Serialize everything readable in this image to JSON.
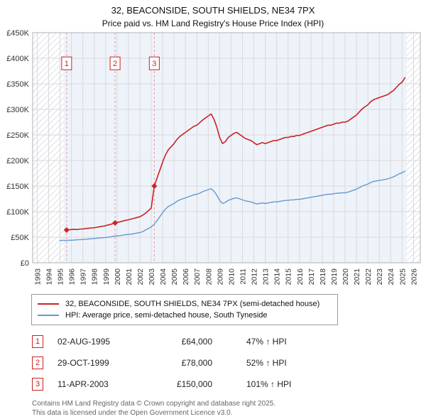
{
  "header": {
    "title": "32, BEACONSIDE, SOUTH SHIELDS, NE34 7PX",
    "subtitle": "Price paid vs. HM Land Registry's House Price Index (HPI)"
  },
  "chart_data": {
    "type": "line",
    "unit": "GBP thousands",
    "xlim": [
      1992.6,
      2026.6
    ],
    "ylim": [
      0,
      450
    ],
    "ytick_step": 50,
    "ytick_labels": [
      "£0",
      "£50K",
      "£100K",
      "£150K",
      "£200K",
      "£250K",
      "£300K",
      "£350K",
      "£400K",
      "£450K"
    ],
    "xticks": [
      1993,
      1994,
      1995,
      1996,
      1997,
      1998,
      1999,
      2000,
      2001,
      2002,
      2003,
      2004,
      2005,
      2006,
      2007,
      2008,
      2009,
      2010,
      2011,
      2012,
      2013,
      2014,
      2015,
      2016,
      2017,
      2018,
      2019,
      2020,
      2021,
      2022,
      2023,
      2024,
      2025,
      2026
    ],
    "grid": true,
    "legend_position": "bottom",
    "hatch_regions": [
      [
        1992.6,
        1995.3
      ],
      [
        2025.4,
        2026.6
      ]
    ],
    "band_region": [
      1995.3,
      2025.4
    ],
    "marker_box_y": 390,
    "colors": {
      "property": "#cc2222",
      "hpi": "#6699cc",
      "sale_line": "#e89999",
      "grid": "#d9d9d9",
      "band": "#eef3fa",
      "hatch": "#c9cfdb",
      "border": "#b0b0b0"
    },
    "series": [
      {
        "name": "32, BEACONSIDE, SOUTH SHIELDS, NE34 7PX (semi-detached house)",
        "color_key": "property",
        "width": 1.6,
        "points": [
          [
            1995.58,
            64
          ],
          [
            1995.75,
            64.5
          ],
          [
            1996.0,
            65
          ],
          [
            1996.25,
            65.5
          ],
          [
            1996.5,
            65
          ],
          [
            1996.75,
            66
          ],
          [
            1997.0,
            66
          ],
          [
            1997.25,
            67
          ],
          [
            1997.5,
            67.5
          ],
          [
            1997.75,
            68
          ],
          [
            1998.0,
            68.5
          ],
          [
            1998.25,
            69.5
          ],
          [
            1998.5,
            70.5
          ],
          [
            1998.75,
            71.5
          ],
          [
            1999.0,
            72.5
          ],
          [
            1999.25,
            74
          ],
          [
            1999.5,
            75.5
          ],
          [
            1999.83,
            78
          ],
          [
            2000.0,
            79
          ],
          [
            2000.25,
            80
          ],
          [
            2000.5,
            81.5
          ],
          [
            2000.75,
            83
          ],
          [
            2001.0,
            84
          ],
          [
            2001.25,
            85.5
          ],
          [
            2001.5,
            87
          ],
          [
            2001.75,
            88.5
          ],
          [
            2002.0,
            90
          ],
          [
            2002.25,
            93
          ],
          [
            2002.5,
            97
          ],
          [
            2002.75,
            102
          ],
          [
            2003.0,
            107
          ],
          [
            2003.27,
            150
          ],
          [
            2003.5,
            165
          ],
          [
            2003.75,
            181
          ],
          [
            2004.0,
            197
          ],
          [
            2004.25,
            211
          ],
          [
            2004.5,
            221
          ],
          [
            2004.75,
            227
          ],
          [
            2005.0,
            233
          ],
          [
            2005.25,
            241
          ],
          [
            2005.5,
            247
          ],
          [
            2005.75,
            251
          ],
          [
            2006.0,
            255
          ],
          [
            2006.25,
            259
          ],
          [
            2006.5,
            263
          ],
          [
            2006.75,
            267
          ],
          [
            2007.0,
            269
          ],
          [
            2007.25,
            274
          ],
          [
            2007.5,
            279
          ],
          [
            2007.75,
            283
          ],
          [
            2008.0,
            287
          ],
          [
            2008.25,
            291
          ],
          [
            2008.5,
            281
          ],
          [
            2008.75,
            265
          ],
          [
            2009.0,
            245
          ],
          [
            2009.25,
            233
          ],
          [
            2009.5,
            237
          ],
          [
            2009.75,
            245
          ],
          [
            2010.0,
            249
          ],
          [
            2010.25,
            253
          ],
          [
            2010.5,
            255
          ],
          [
            2010.75,
            251
          ],
          [
            2011.0,
            247
          ],
          [
            2011.25,
            243
          ],
          [
            2011.5,
            241
          ],
          [
            2011.75,
            239
          ],
          [
            2012.0,
            235
          ],
          [
            2012.25,
            231
          ],
          [
            2012.5,
            233
          ],
          [
            2012.75,
            235
          ],
          [
            2013.0,
            233
          ],
          [
            2013.25,
            235
          ],
          [
            2013.5,
            237
          ],
          [
            2013.75,
            239
          ],
          [
            2014.0,
            239
          ],
          [
            2014.25,
            241
          ],
          [
            2014.5,
            243
          ],
          [
            2014.75,
            245
          ],
          [
            2015.0,
            245
          ],
          [
            2015.25,
            247
          ],
          [
            2015.5,
            247
          ],
          [
            2015.75,
            249
          ],
          [
            2016.0,
            249
          ],
          [
            2016.25,
            251
          ],
          [
            2016.5,
            253
          ],
          [
            2016.75,
            255
          ],
          [
            2017.0,
            257
          ],
          [
            2017.25,
            259
          ],
          [
            2017.5,
            261
          ],
          [
            2017.75,
            263
          ],
          [
            2018.0,
            265
          ],
          [
            2018.25,
            267
          ],
          [
            2018.5,
            269
          ],
          [
            2018.75,
            269
          ],
          [
            2019.0,
            271
          ],
          [
            2019.25,
            273
          ],
          [
            2019.5,
            273
          ],
          [
            2019.75,
            275
          ],
          [
            2020.0,
            275
          ],
          [
            2020.25,
            277
          ],
          [
            2020.5,
            281
          ],
          [
            2020.75,
            285
          ],
          [
            2021.0,
            289
          ],
          [
            2021.25,
            295
          ],
          [
            2021.5,
            301
          ],
          [
            2021.75,
            305
          ],
          [
            2022.0,
            309
          ],
          [
            2022.25,
            315
          ],
          [
            2022.5,
            319
          ],
          [
            2022.75,
            321
          ],
          [
            2023.0,
            323
          ],
          [
            2023.25,
            325
          ],
          [
            2023.5,
            327
          ],
          [
            2023.75,
            329
          ],
          [
            2024.0,
            333
          ],
          [
            2024.25,
            337
          ],
          [
            2024.5,
            343
          ],
          [
            2024.75,
            349
          ],
          [
            2025.0,
            353
          ],
          [
            2025.25,
            362
          ]
        ]
      },
      {
        "name": "HPI: Average price, semi-detached house, South Tyneside",
        "color_key": "hpi",
        "width": 1.4,
        "points": [
          [
            1995.0,
            43
          ],
          [
            1995.25,
            44
          ],
          [
            1995.5,
            43.5
          ],
          [
            1995.75,
            44
          ],
          [
            1996.0,
            44
          ],
          [
            1996.25,
            44.5
          ],
          [
            1996.5,
            45
          ],
          [
            1996.75,
            45
          ],
          [
            1997.0,
            45.5
          ],
          [
            1997.25,
            46
          ],
          [
            1997.5,
            46.5
          ],
          [
            1997.75,
            47
          ],
          [
            1998.0,
            47.5
          ],
          [
            1998.25,
            48
          ],
          [
            1998.5,
            48.5
          ],
          [
            1998.75,
            49
          ],
          [
            1999.0,
            49.5
          ],
          [
            1999.25,
            50
          ],
          [
            1999.5,
            51
          ],
          [
            1999.75,
            52
          ],
          [
            2000.0,
            52.5
          ],
          [
            2000.25,
            53
          ],
          [
            2000.5,
            54
          ],
          [
            2000.75,
            55
          ],
          [
            2001.0,
            55.5
          ],
          [
            2001.25,
            56
          ],
          [
            2001.5,
            57
          ],
          [
            2001.75,
            58
          ],
          [
            2002.0,
            59
          ],
          [
            2002.25,
            61
          ],
          [
            2002.5,
            64
          ],
          [
            2002.75,
            67
          ],
          [
            2003.0,
            70
          ],
          [
            2003.25,
            75
          ],
          [
            2003.5,
            82
          ],
          [
            2003.75,
            90
          ],
          [
            2004.0,
            98
          ],
          [
            2004.25,
            105
          ],
          [
            2004.5,
            110
          ],
          [
            2004.75,
            113
          ],
          [
            2005.0,
            116
          ],
          [
            2005.25,
            120
          ],
          [
            2005.5,
            123
          ],
          [
            2005.75,
            125
          ],
          [
            2006.0,
            127
          ],
          [
            2006.25,
            129
          ],
          [
            2006.5,
            131
          ],
          [
            2006.75,
            133
          ],
          [
            2007.0,
            134
          ],
          [
            2007.25,
            136
          ],
          [
            2007.5,
            139
          ],
          [
            2007.75,
            141
          ],
          [
            2008.0,
            143
          ],
          [
            2008.25,
            145
          ],
          [
            2008.5,
            140
          ],
          [
            2008.75,
            132
          ],
          [
            2009.0,
            122
          ],
          [
            2009.25,
            116
          ],
          [
            2009.5,
            118
          ],
          [
            2009.75,
            122
          ],
          [
            2010.0,
            124
          ],
          [
            2010.25,
            126
          ],
          [
            2010.5,
            127
          ],
          [
            2010.75,
            125
          ],
          [
            2011.0,
            123
          ],
          [
            2011.25,
            121
          ],
          [
            2011.5,
            120
          ],
          [
            2011.75,
            119
          ],
          [
            2012.0,
            117
          ],
          [
            2012.25,
            115
          ],
          [
            2012.5,
            116
          ],
          [
            2012.75,
            117
          ],
          [
            2013.0,
            116
          ],
          [
            2013.25,
            117
          ],
          [
            2013.5,
            118
          ],
          [
            2013.75,
            119
          ],
          [
            2014.0,
            119
          ],
          [
            2014.25,
            120
          ],
          [
            2014.5,
            121
          ],
          [
            2014.75,
            122
          ],
          [
            2015.0,
            122
          ],
          [
            2015.25,
            123
          ],
          [
            2015.5,
            123
          ],
          [
            2015.75,
            124
          ],
          [
            2016.0,
            124
          ],
          [
            2016.25,
            125
          ],
          [
            2016.5,
            126
          ],
          [
            2016.75,
            127
          ],
          [
            2017.0,
            128
          ],
          [
            2017.25,
            129
          ],
          [
            2017.5,
            130
          ],
          [
            2017.75,
            131
          ],
          [
            2018.0,
            132
          ],
          [
            2018.25,
            133
          ],
          [
            2018.5,
            134
          ],
          [
            2018.75,
            134
          ],
          [
            2019.0,
            135
          ],
          [
            2019.25,
            136
          ],
          [
            2019.5,
            136
          ],
          [
            2019.75,
            137
          ],
          [
            2020.0,
            137
          ],
          [
            2020.25,
            138
          ],
          [
            2020.5,
            140
          ],
          [
            2020.75,
            142
          ],
          [
            2021.0,
            144
          ],
          [
            2021.25,
            147
          ],
          [
            2021.5,
            150
          ],
          [
            2021.75,
            152
          ],
          [
            2022.0,
            154
          ],
          [
            2022.25,
            157
          ],
          [
            2022.5,
            159
          ],
          [
            2022.75,
            160
          ],
          [
            2023.0,
            161
          ],
          [
            2023.25,
            162
          ],
          [
            2023.5,
            163
          ],
          [
            2023.75,
            164
          ],
          [
            2024.0,
            166
          ],
          [
            2024.25,
            168
          ],
          [
            2024.5,
            171
          ],
          [
            2024.75,
            174
          ],
          [
            2025.0,
            176
          ],
          [
            2025.25,
            179
          ]
        ]
      }
    ],
    "sales": [
      {
        "label": "1",
        "x": 1995.58,
        "y": 64
      },
      {
        "label": "2",
        "x": 1999.83,
        "y": 78
      },
      {
        "label": "3",
        "x": 2003.27,
        "y": 150
      }
    ]
  },
  "transactions": [
    {
      "num": "1",
      "date": "02-AUG-1995",
      "price": "£64,000",
      "hpi": "47% ↑ HPI"
    },
    {
      "num": "2",
      "date": "29-OCT-1999",
      "price": "£78,000",
      "hpi": "52% ↑ HPI"
    },
    {
      "num": "3",
      "date": "11-APR-2003",
      "price": "£150,000",
      "hpi": "101% ↑ HPI"
    }
  ],
  "footer": {
    "line1": "Contains HM Land Registry data © Crown copyright and database right 2025.",
    "line2": "This data is licensed under the Open Government Licence v3.0."
  }
}
